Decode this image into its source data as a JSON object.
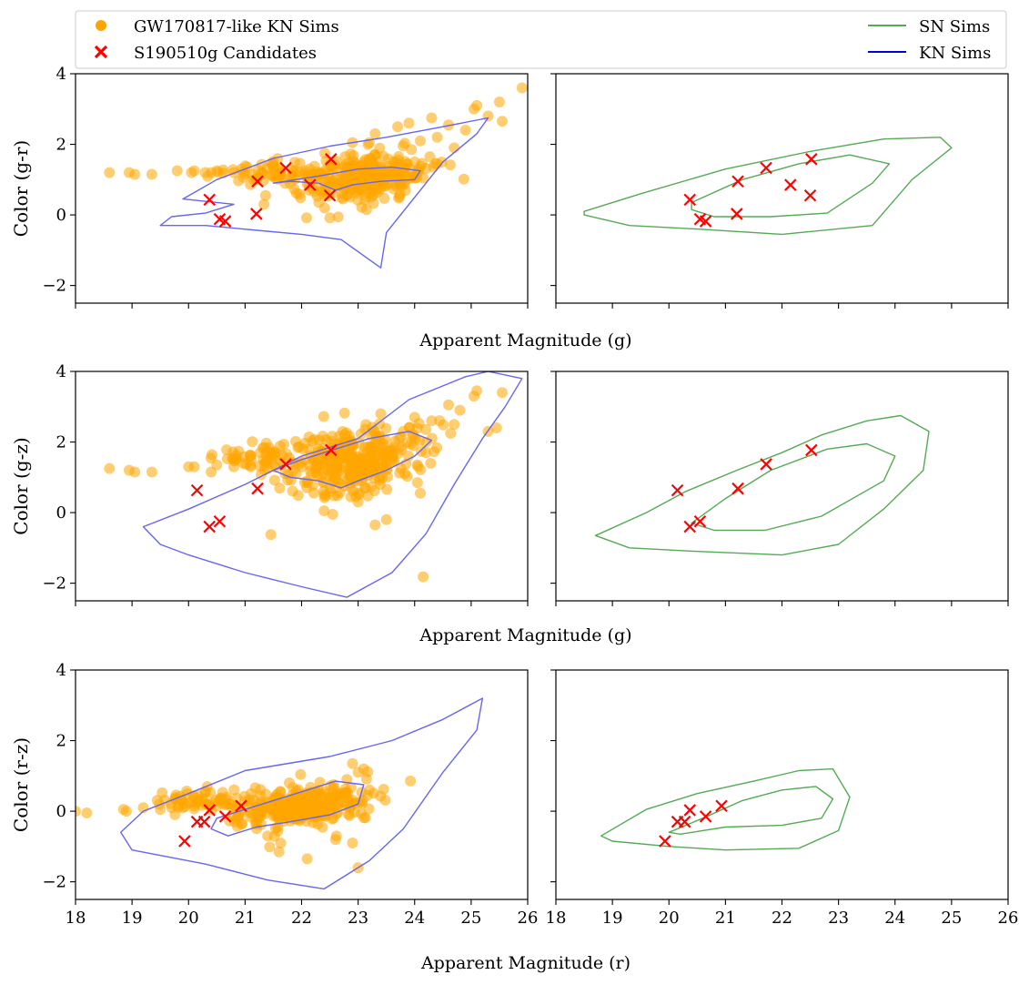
{
  "legend": {
    "items": [
      {
        "label": "GW170817-like KN Sims",
        "marker": "circle",
        "color": "#FFA500"
      },
      {
        "label": "S190510g Candidates",
        "marker": "x",
        "color": "#FF0000"
      },
      {
        "label": "SN Sims",
        "marker": "line",
        "color": "#55AA55"
      },
      {
        "label": "KN Sims",
        "marker": "line",
        "color": "#0000DD"
      }
    ]
  },
  "colors": {
    "kn_points": "#FFA500",
    "candidates": "#FF0000",
    "sn_contour": "#55AA55",
    "kn_contour": "#6666EE"
  },
  "chart_data": [
    {
      "type": "scatter",
      "title": "",
      "xlabel": "Apparent Magnitude (g)",
      "ylabel": "Color (g-r)",
      "xlim": [
        18,
        26
      ],
      "ylim": [
        -2.5,
        4
      ],
      "x_ticks": [
        18,
        19,
        20,
        21,
        22,
        23,
        24,
        25,
        26
      ],
      "y_ticks": [
        -2,
        0,
        2,
        4
      ],
      "show_x_tick_labels": false,
      "candidates": [
        [
          20.37,
          0.43
        ],
        [
          20.55,
          -0.12
        ],
        [
          20.65,
          -0.18
        ],
        [
          21.2,
          0.03
        ],
        [
          21.22,
          0.95
        ],
        [
          21.72,
          1.33
        ],
        [
          22.15,
          0.85
        ],
        [
          22.52,
          1.58
        ],
        [
          22.5,
          0.55
        ]
      ],
      "kn_cluster": {
        "n": 300,
        "cx": 23.1,
        "cy": 1.05,
        "sx": 0.55,
        "sy": 0.35,
        "tilt": 0.18
      },
      "kn_extra": [
        [
          18.6,
          1.2
        ],
        [
          18.95,
          1.2
        ],
        [
          19.05,
          1.15
        ],
        [
          19.35,
          1.15
        ],
        [
          19.8,
          1.25
        ],
        [
          20.05,
          1.2
        ],
        [
          20.1,
          1.25
        ],
        [
          20.4,
          1.2
        ],
        [
          20.5,
          1.25
        ],
        [
          20.8,
          1.2
        ],
        [
          21.0,
          1.15
        ],
        [
          21.3,
          1.2
        ],
        [
          22.9,
          2.05
        ],
        [
          23.3,
          2.3
        ],
        [
          23.7,
          2.5
        ],
        [
          23.9,
          2.6
        ],
        [
          24.0,
          1.5
        ],
        [
          24.1,
          2.1
        ],
        [
          24.3,
          2.75
        ],
        [
          24.4,
          2.2
        ],
        [
          24.6,
          2.55
        ],
        [
          24.7,
          1.9
        ],
        [
          24.9,
          2.4
        ],
        [
          25.05,
          3.0
        ],
        [
          25.1,
          3.1
        ],
        [
          25.3,
          2.8
        ],
        [
          25.5,
          3.2
        ],
        [
          25.55,
          2.65
        ],
        [
          25.9,
          3.6
        ],
        [
          22.5,
          -0.08
        ],
        [
          23.15,
          0.15
        ],
        [
          23.8,
          0.9
        ],
        [
          24.15,
          1.05
        ],
        [
          24.4,
          1.45
        ]
      ],
      "kn_contours": [
        [
          [
            21.5,
            0.9
          ],
          [
            22.3,
            1.1
          ],
          [
            23.0,
            1.3
          ],
          [
            23.6,
            1.35
          ],
          [
            24.1,
            1.25
          ],
          [
            24.0,
            1.0
          ],
          [
            23.4,
            0.95
          ],
          [
            22.9,
            0.85
          ],
          [
            22.6,
            0.7
          ],
          [
            22.3,
            0.9
          ],
          [
            21.8,
            0.95
          ],
          [
            21.5,
            0.9
          ]
        ],
        [
          [
            19.9,
            0.45
          ],
          [
            20.5,
            1.0
          ],
          [
            21.5,
            1.6
          ],
          [
            22.5,
            1.95
          ],
          [
            23.5,
            2.2
          ],
          [
            24.5,
            2.5
          ],
          [
            25.3,
            2.75
          ],
          [
            25.1,
            2.3
          ],
          [
            24.5,
            1.5
          ],
          [
            24.0,
            0.5
          ],
          [
            23.5,
            -0.5
          ],
          [
            23.4,
            -1.5
          ],
          [
            22.7,
            -0.7
          ],
          [
            22.0,
            -0.55
          ],
          [
            21.3,
            -0.45
          ],
          [
            20.3,
            -0.3
          ],
          [
            19.5,
            -0.3
          ],
          [
            19.7,
            -0.05
          ],
          [
            20.3,
            0.05
          ],
          [
            20.8,
            0.3
          ],
          [
            19.9,
            0.45
          ]
        ]
      ],
      "sn_contours": [
        [
          [
            20.4,
            0.35
          ],
          [
            21.3,
            1.0
          ],
          [
            22.3,
            1.45
          ],
          [
            23.2,
            1.7
          ],
          [
            23.9,
            1.45
          ],
          [
            23.6,
            0.9
          ],
          [
            22.8,
            0.05
          ],
          [
            21.8,
            -0.05
          ],
          [
            20.8,
            -0.05
          ],
          [
            20.4,
            0.15
          ],
          [
            20.4,
            0.35
          ]
        ],
        [
          [
            18.5,
            0.1
          ],
          [
            19.5,
            0.6
          ],
          [
            21.0,
            1.3
          ],
          [
            22.5,
            1.8
          ],
          [
            23.8,
            2.15
          ],
          [
            24.8,
            2.2
          ],
          [
            25.0,
            1.9
          ],
          [
            24.3,
            1.0
          ],
          [
            23.6,
            -0.3
          ],
          [
            22.0,
            -0.55
          ],
          [
            20.5,
            -0.4
          ],
          [
            19.3,
            -0.3
          ],
          [
            18.5,
            0.0
          ],
          [
            18.5,
            0.1
          ]
        ]
      ]
    },
    {
      "type": "scatter",
      "title": "",
      "xlabel": "Apparent Magnitude (g)",
      "ylabel": "Color (g-z)",
      "xlim": [
        18,
        26
      ],
      "ylim": [
        -2.5,
        4
      ],
      "x_ticks": [
        18,
        19,
        20,
        21,
        22,
        23,
        24,
        25,
        26
      ],
      "y_ticks": [
        -2,
        0,
        2,
        4
      ],
      "show_x_tick_labels": false,
      "candidates": [
        [
          20.15,
          0.63
        ],
        [
          20.37,
          -0.4
        ],
        [
          20.55,
          -0.25
        ],
        [
          21.22,
          0.68
        ],
        [
          21.72,
          1.37
        ],
        [
          22.52,
          1.77
        ]
      ],
      "kn_cluster": {
        "n": 320,
        "cx": 23.0,
        "cy": 1.45,
        "sx": 0.6,
        "sy": 0.45,
        "tilt": 0.35
      },
      "kn_extra": [
        [
          18.6,
          1.25
        ],
        [
          18.95,
          1.2
        ],
        [
          19.05,
          1.15
        ],
        [
          19.35,
          1.15
        ],
        [
          20.0,
          1.3
        ],
        [
          20.1,
          1.3
        ],
        [
          20.4,
          1.15
        ],
        [
          20.5,
          1.35
        ],
        [
          20.8,
          1.3
        ],
        [
          21.1,
          1.3
        ],
        [
          21.4,
          1.25
        ],
        [
          23.4,
          2.8
        ],
        [
          23.8,
          2.3
        ],
        [
          24.0,
          2.7
        ],
        [
          24.2,
          1.7
        ],
        [
          24.3,
          2.6
        ],
        [
          24.6,
          3.05
        ],
        [
          24.7,
          2.5
        ],
        [
          24.8,
          2.9
        ],
        [
          25.05,
          3.3
        ],
        [
          25.1,
          3.45
        ],
        [
          25.55,
          3.4
        ],
        [
          25.3,
          2.3
        ],
        [
          25.45,
          2.4
        ],
        [
          24.05,
          0.85
        ],
        [
          24.1,
          0.55
        ],
        [
          23.3,
          -0.35
        ],
        [
          23.5,
          -0.2
        ],
        [
          22.55,
          -0.05
        ],
        [
          22.4,
          0.05
        ],
        [
          24.15,
          -1.82
        ],
        [
          23.0,
          0.3
        ]
      ],
      "kn_contours": [
        [
          [
            21.5,
            1.2
          ],
          [
            22.0,
            1.5
          ],
          [
            22.6,
            1.8
          ],
          [
            23.2,
            2.1
          ],
          [
            23.9,
            2.3
          ],
          [
            24.3,
            2.05
          ],
          [
            24.0,
            1.6
          ],
          [
            23.5,
            1.2
          ],
          [
            23.0,
            0.9
          ],
          [
            22.7,
            0.7
          ],
          [
            22.3,
            0.9
          ],
          [
            21.8,
            1.0
          ],
          [
            21.5,
            1.2
          ]
        ],
        [
          [
            19.2,
            -0.4
          ],
          [
            20.0,
            0.1
          ],
          [
            21.0,
            0.8
          ],
          [
            22.0,
            1.6
          ],
          [
            23.0,
            2.1
          ],
          [
            23.9,
            3.2
          ],
          [
            24.9,
            3.85
          ],
          [
            25.3,
            4.0
          ],
          [
            25.9,
            3.8
          ],
          [
            25.6,
            3.0
          ],
          [
            25.2,
            2.1
          ],
          [
            24.7,
            0.8
          ],
          [
            24.2,
            -0.6
          ],
          [
            23.6,
            -1.7
          ],
          [
            22.8,
            -2.4
          ],
          [
            22.0,
            -2.1
          ],
          [
            21.0,
            -1.7
          ],
          [
            20.0,
            -1.2
          ],
          [
            19.5,
            -0.9
          ],
          [
            19.2,
            -0.4
          ]
        ]
      ],
      "sn_contours": [
        [
          [
            20.4,
            -0.3
          ],
          [
            21.0,
            0.4
          ],
          [
            21.8,
            1.2
          ],
          [
            22.8,
            1.8
          ],
          [
            23.5,
            1.95
          ],
          [
            24.0,
            1.6
          ],
          [
            23.8,
            0.9
          ],
          [
            22.7,
            -0.1
          ],
          [
            21.7,
            -0.5
          ],
          [
            20.8,
            -0.5
          ],
          [
            20.4,
            -0.3
          ]
        ],
        [
          [
            18.7,
            -0.65
          ],
          [
            19.6,
            0.0
          ],
          [
            20.3,
            0.6
          ],
          [
            21.2,
            1.2
          ],
          [
            22.0,
            1.7
          ],
          [
            22.7,
            2.2
          ],
          [
            23.5,
            2.6
          ],
          [
            24.1,
            2.75
          ],
          [
            24.6,
            2.3
          ],
          [
            24.5,
            1.2
          ],
          [
            23.8,
            0.1
          ],
          [
            23.0,
            -0.9
          ],
          [
            22.0,
            -1.2
          ],
          [
            20.5,
            -1.1
          ],
          [
            19.3,
            -1.0
          ],
          [
            18.7,
            -0.65
          ]
        ]
      ]
    },
    {
      "type": "scatter",
      "title": "",
      "xlabel": "Apparent Magnitude (r)",
      "ylabel": "Color (r-z)",
      "xlim": [
        18,
        26
      ],
      "ylim": [
        -2.5,
        4
      ],
      "x_ticks": [
        18,
        19,
        20,
        21,
        22,
        23,
        24,
        25,
        26
      ],
      "y_ticks": [
        -2,
        0,
        2,
        4
      ],
      "show_x_tick_labels": true,
      "candidates": [
        [
          19.93,
          -0.85
        ],
        [
          20.15,
          -0.3
        ],
        [
          20.28,
          -0.3
        ],
        [
          20.37,
          0.03
        ],
        [
          20.65,
          -0.15
        ],
        [
          20.93,
          0.15
        ]
      ],
      "kn_cluster": {
        "n": 300,
        "cx": 22.0,
        "cy": 0.15,
        "sx": 0.6,
        "sy": 0.3,
        "tilt": 0.2
      },
      "kn_extra": [
        [
          18.0,
          0.0
        ],
        [
          18.2,
          -0.05
        ],
        [
          18.85,
          0.05
        ],
        [
          18.9,
          0.0
        ],
        [
          19.2,
          0.1
        ],
        [
          19.5,
          0.05
        ],
        [
          19.7,
          0.1
        ],
        [
          19.9,
          0.1
        ],
        [
          20.1,
          0.15
        ],
        [
          20.3,
          0.2
        ],
        [
          20.5,
          0.15
        ],
        [
          22.9,
          1.35
        ],
        [
          23.1,
          1.2
        ],
        [
          23.0,
          1.1
        ],
        [
          22.8,
          0.9
        ],
        [
          23.2,
          0.6
        ],
        [
          22.1,
          -1.35
        ],
        [
          21.6,
          -1.15
        ],
        [
          23.0,
          -1.6
        ],
        [
          22.9,
          -0.9
        ],
        [
          22.6,
          -0.8
        ],
        [
          21.4,
          -0.7
        ]
      ],
      "kn_contours": [
        [
          [
            20.5,
            -0.2
          ],
          [
            21.3,
            0.2
          ],
          [
            22.0,
            0.55
          ],
          [
            22.6,
            0.85
          ],
          [
            23.1,
            0.75
          ],
          [
            23.0,
            0.2
          ],
          [
            22.5,
            -0.1
          ],
          [
            21.8,
            -0.3
          ],
          [
            21.2,
            -0.45
          ],
          [
            20.7,
            -0.7
          ],
          [
            20.4,
            -0.5
          ],
          [
            20.5,
            -0.2
          ]
        ],
        [
          [
            19.2,
            0.0
          ],
          [
            20.0,
            0.5
          ],
          [
            21.0,
            1.15
          ],
          [
            22.5,
            1.55
          ],
          [
            23.6,
            2.0
          ],
          [
            24.5,
            2.6
          ],
          [
            25.2,
            3.2
          ],
          [
            25.1,
            2.3
          ],
          [
            24.5,
            1.1
          ],
          [
            23.8,
            -0.5
          ],
          [
            23.2,
            -1.4
          ],
          [
            22.4,
            -2.2
          ],
          [
            21.4,
            -1.95
          ],
          [
            20.3,
            -1.5
          ],
          [
            19.0,
            -1.1
          ],
          [
            18.8,
            -0.6
          ],
          [
            19.2,
            0.0
          ]
        ]
      ],
      "sn_contours": [
        [
          [
            20.0,
            -0.6
          ],
          [
            20.6,
            -0.2
          ],
          [
            21.3,
            0.3
          ],
          [
            22.0,
            0.6
          ],
          [
            22.6,
            0.7
          ],
          [
            22.9,
            0.35
          ],
          [
            22.7,
            -0.2
          ],
          [
            22.0,
            -0.4
          ],
          [
            21.0,
            -0.45
          ],
          [
            20.2,
            -0.65
          ],
          [
            20.0,
            -0.6
          ]
        ],
        [
          [
            18.8,
            -0.7
          ],
          [
            19.6,
            0.05
          ],
          [
            20.5,
            0.5
          ],
          [
            21.5,
            0.85
          ],
          [
            22.3,
            1.15
          ],
          [
            22.9,
            1.2
          ],
          [
            23.2,
            0.4
          ],
          [
            23.0,
            -0.55
          ],
          [
            22.3,
            -1.05
          ],
          [
            21.0,
            -1.1
          ],
          [
            20.0,
            -1.0
          ],
          [
            19.0,
            -0.85
          ],
          [
            18.8,
            -0.7
          ]
        ]
      ]
    }
  ]
}
